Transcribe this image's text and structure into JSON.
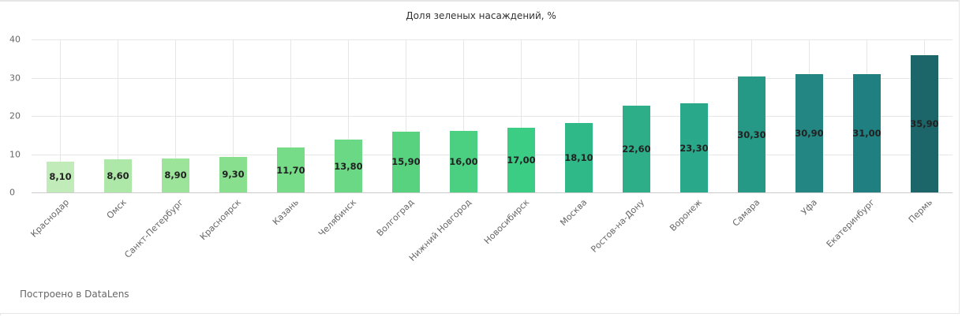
{
  "chart_data": {
    "type": "bar",
    "title": "Доля зеленых насаждений, %",
    "xlabel": "",
    "ylabel": "",
    "ylim": [
      0,
      40
    ],
    "yticks": [
      0,
      10,
      20,
      30,
      40
    ],
    "grid": true,
    "legend": null,
    "categories": [
      "Краснодар",
      "Омск",
      "Санкт-Петербург",
      "Красноярск",
      "Казань",
      "Челябинск",
      "Волгоград",
      "Нижний Новгород",
      "Новосибирск",
      "Москва",
      "Ростов-на-Дону",
      "Воронеж",
      "Самара",
      "Уфа",
      "Екатеринбург",
      "Пермь"
    ],
    "values": [
      8.1,
      8.6,
      8.9,
      9.3,
      11.7,
      13.8,
      15.9,
      16.0,
      17.0,
      18.1,
      22.6,
      23.3,
      30.3,
      30.9,
      31.0,
      35.9
    ],
    "value_labels": [
      "8,10",
      "8,60",
      "8,90",
      "9,30",
      "11,70",
      "13,80",
      "15,90",
      "16,00",
      "17,00",
      "18,10",
      "22,60",
      "23,30",
      "30,30",
      "30,90",
      "31,00",
      "35,90"
    ],
    "colors": [
      "#c1ecb9",
      "#ade8a8",
      "#9be49a",
      "#88e08e",
      "#77dc88",
      "#6ad884",
      "#58d27f",
      "#4bd081",
      "#3ccd84",
      "#2fb888",
      "#2eae88",
      "#2aa98a",
      "#269886",
      "#238682",
      "#207f80",
      "#1c6569"
    ]
  },
  "footer": {
    "credit": "Построено в DataLens"
  }
}
